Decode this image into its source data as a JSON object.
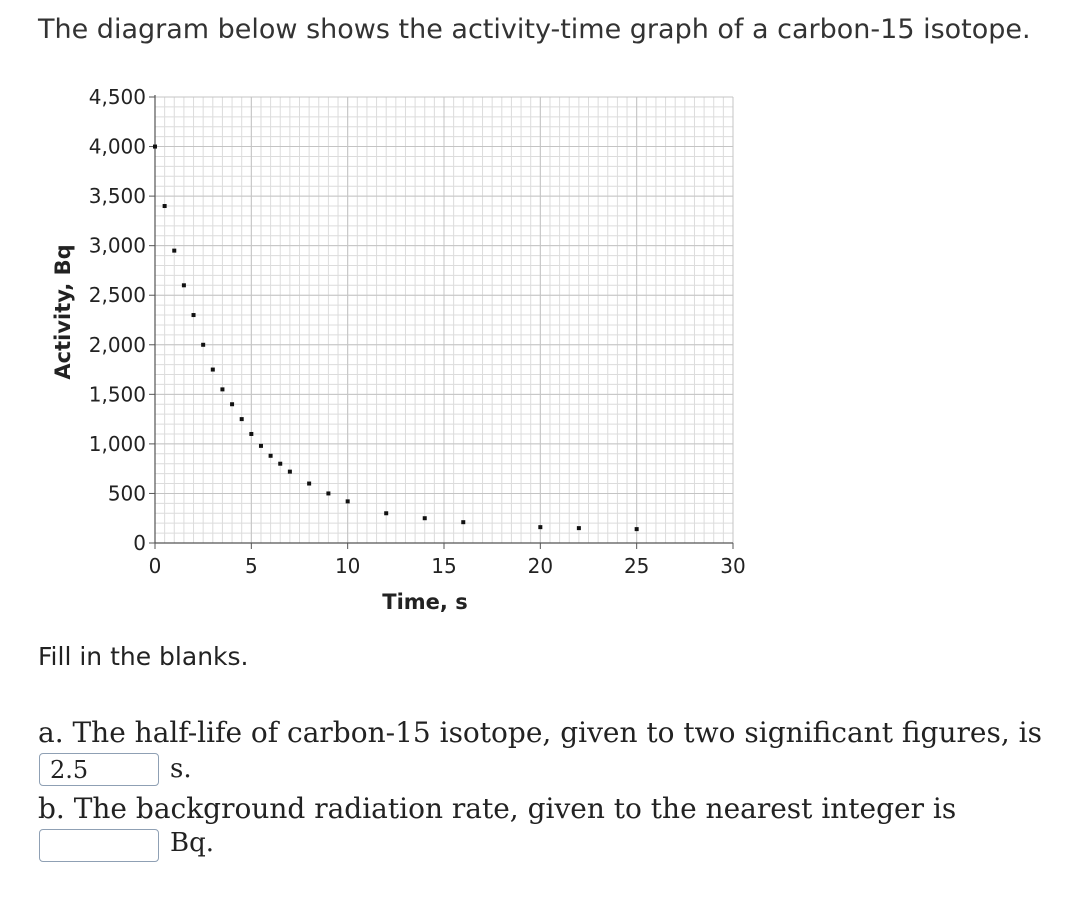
{
  "question": {
    "intro": "The diagram below shows the activity-time graph of a carbon-15 isotope.",
    "fill_label": "Fill in the blanks.",
    "part_a": {
      "text": "a. The half-life of carbon-15 isotope, given to two significant figures, is",
      "value": "2.5",
      "unit": "s."
    },
    "part_b": {
      "text": "b. The background radiation rate, given to the nearest integer is",
      "value": "",
      "unit": "Bq."
    }
  },
  "chart_data": {
    "type": "scatter",
    "xlabel": "Time, s",
    "ylabel": "Activity, Bq",
    "xlim": [
      0,
      30
    ],
    "ylim": [
      0,
      4500
    ],
    "xticks": [
      0,
      5,
      10,
      15,
      20,
      25,
      30
    ],
    "xtick_labels": [
      "0",
      "5",
      "10",
      "15",
      "20",
      "25",
      "30"
    ],
    "yticks": [
      0,
      500,
      1000,
      1500,
      2000,
      2500,
      3000,
      3500,
      4000,
      4500
    ],
    "ytick_labels": [
      "0",
      "500",
      "1,000",
      "1,500",
      "2,000",
      "2,500",
      "3,000",
      "3,500",
      "4,000",
      "4,500"
    ],
    "grid": true,
    "points": [
      {
        "x": 0,
        "y": 4000
      },
      {
        "x": 0.5,
        "y": 3400
      },
      {
        "x": 1,
        "y": 2950
      },
      {
        "x": 1.5,
        "y": 2600
      },
      {
        "x": 2,
        "y": 2300
      },
      {
        "x": 2.5,
        "y": 2000
      },
      {
        "x": 3,
        "y": 1750
      },
      {
        "x": 3.5,
        "y": 1550
      },
      {
        "x": 4,
        "y": 1400
      },
      {
        "x": 4.5,
        "y": 1250
      },
      {
        "x": 5,
        "y": 1100
      },
      {
        "x": 5.5,
        "y": 980
      },
      {
        "x": 6,
        "y": 880
      },
      {
        "x": 6.5,
        "y": 800
      },
      {
        "x": 7,
        "y": 720
      },
      {
        "x": 8,
        "y": 600
      },
      {
        "x": 9,
        "y": 500
      },
      {
        "x": 10,
        "y": 420
      },
      {
        "x": 12,
        "y": 300
      },
      {
        "x": 14,
        "y": 250
      },
      {
        "x": 16,
        "y": 210
      },
      {
        "x": 20,
        "y": 160
      },
      {
        "x": 22,
        "y": 150
      },
      {
        "x": 25,
        "y": 140
      }
    ]
  }
}
